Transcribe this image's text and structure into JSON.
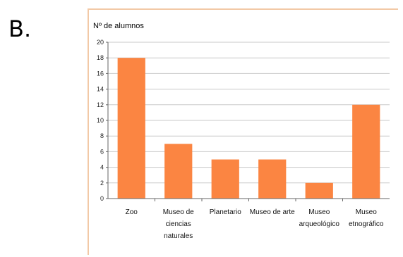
{
  "panel_label": "B.",
  "chart_data": {
    "type": "bar",
    "ylabel": "Nº de alumnos",
    "ylim": [
      0,
      20
    ],
    "yticks": [
      0,
      2,
      4,
      6,
      8,
      10,
      12,
      14,
      16,
      18,
      20
    ],
    "categories": [
      [
        "Zoo"
      ],
      [
        "Museo de",
        "ciencias",
        "naturales"
      ],
      [
        "Planetario"
      ],
      [
        "Museo de arte"
      ],
      [
        "Museo",
        "arqueológico"
      ],
      [
        "Museo",
        "etnográfico"
      ]
    ],
    "values": [
      18,
      7,
      5,
      5,
      2,
      12
    ],
    "bar_color": "#fb8542",
    "grid": true
  }
}
